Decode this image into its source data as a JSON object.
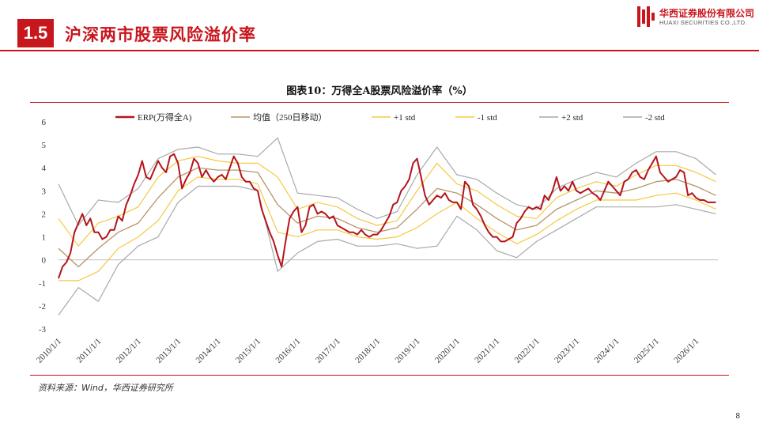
{
  "header": {
    "section_number": "1.5",
    "section_title": "沪深两市股票风险溢价率",
    "logo_cn": "华西证券股份有限公司",
    "logo_en": "HUAXI SECURITIES CO.,LTD.",
    "accent_color": "#c8161d"
  },
  "figure": {
    "title": "图表10：万得全A股票风险溢价率（%）",
    "source": "资料来源：Wind，华西证券研究所"
  },
  "page": {
    "number": "8"
  },
  "chart_data": {
    "type": "line",
    "title": "图表10：万得全A股票风险溢价率（%）",
    "xlabel": "",
    "ylabel": "",
    "ylim": [
      -3,
      6
    ],
    "yticks": [
      "-3",
      "-2",
      "-1",
      "0",
      "1",
      "2",
      "3",
      "4",
      "5",
      "6"
    ],
    "xlim": [
      2010.0,
      2026.55
    ],
    "xticks": [
      "2010/1/1",
      "2011/1/1",
      "2012/1/1",
      "2013/1/1",
      "2014/1/1",
      "2015/1/1",
      "2016/1/1",
      "2017/1/1",
      "2018/1/1",
      "2019/1/1",
      "2020/1/1",
      "2021/1/1",
      "2022/1/1",
      "2023/1/1",
      "2024/1/1",
      "2025/1/1",
      "2026/1/1"
    ],
    "legend_position": "top",
    "grid": false,
    "series": [
      {
        "name": "ERP(万得全A)",
        "color": "#b5141b",
        "width": 2.0,
        "x": [
          2010.0,
          2010.1,
          2010.2,
          2010.3,
          2010.4,
          2010.5,
          2010.6,
          2010.7,
          2010.8,
          2010.9,
          2011.0,
          2011.1,
          2011.2,
          2011.3,
          2011.4,
          2011.5,
          2011.6,
          2011.7,
          2011.8,
          2011.9,
          2012.0,
          2012.1,
          2012.2,
          2012.3,
          2012.4,
          2012.5,
          2012.6,
          2012.7,
          2012.8,
          2012.9,
          2013.0,
          2013.1,
          2013.2,
          2013.3,
          2013.4,
          2013.5,
          2013.6,
          2013.7,
          2013.8,
          2013.9,
          2014.0,
          2014.1,
          2014.2,
          2014.3,
          2014.4,
          2014.5,
          2014.6,
          2014.7,
          2014.8,
          2014.9,
          2015.0,
          2015.1,
          2015.2,
          2015.3,
          2015.4,
          2015.5,
          2015.6,
          2015.7,
          2015.8,
          2015.9,
          2016.0,
          2016.1,
          2016.2,
          2016.3,
          2016.4,
          2016.5,
          2016.6,
          2016.7,
          2016.8,
          2016.9,
          2017.0,
          2017.1,
          2017.2,
          2017.3,
          2017.4,
          2017.5,
          2017.6,
          2017.7,
          2017.8,
          2017.9,
          2018.0,
          2018.1,
          2018.2,
          2018.3,
          2018.4,
          2018.5,
          2018.6,
          2018.7,
          2018.8,
          2018.9,
          2019.0,
          2019.1,
          2019.2,
          2019.3,
          2019.4,
          2019.5,
          2019.6,
          2019.7,
          2019.8,
          2019.9,
          2020.0,
          2020.1,
          2020.2,
          2020.3,
          2020.4,
          2020.5,
          2020.6,
          2020.7,
          2020.8,
          2020.9,
          2021.0,
          2021.1,
          2021.2,
          2021.3,
          2021.4,
          2021.5,
          2021.6,
          2021.7,
          2021.8,
          2021.9,
          2022.0,
          2022.1,
          2022.2,
          2022.3,
          2022.4,
          2022.5,
          2022.6,
          2022.7,
          2022.8,
          2022.9,
          2023.0,
          2023.1,
          2023.2,
          2023.3,
          2023.4,
          2023.5,
          2023.6,
          2023.7,
          2023.8,
          2023.9,
          2024.0,
          2024.1,
          2024.2,
          2024.3,
          2024.4,
          2024.5,
          2024.6,
          2024.7,
          2024.8,
          2024.9,
          2025.0,
          2025.1,
          2025.2,
          2025.3,
          2025.4,
          2025.5,
          2025.6,
          2025.7,
          2025.8,
          2025.9,
          2026.0,
          2026.1,
          2026.2,
          2026.3,
          2026.4,
          2026.5
        ],
        "y": [
          -0.8,
          -0.3,
          -0.1,
          0.3,
          1.2,
          1.6,
          2.0,
          1.5,
          1.8,
          1.2,
          1.2,
          0.9,
          1.0,
          1.3,
          1.3,
          1.9,
          1.7,
          2.4,
          2.8,
          3.3,
          3.7,
          4.3,
          3.6,
          3.5,
          3.9,
          4.3,
          4.0,
          3.8,
          4.5,
          4.6,
          4.2,
          3.1,
          3.5,
          3.8,
          4.4,
          4.2,
          3.6,
          3.9,
          3.6,
          3.4,
          3.6,
          3.7,
          3.5,
          4.0,
          4.5,
          4.2,
          3.6,
          3.4,
          3.4,
          3.1,
          3.0,
          2.2,
          1.7,
          1.2,
          0.8,
          0.2,
          -0.3,
          0.8,
          1.8,
          2.1,
          2.3,
          1.2,
          1.5,
          2.3,
          2.4,
          2.0,
          2.1,
          2.0,
          1.8,
          1.9,
          1.5,
          1.4,
          1.3,
          1.2,
          1.2,
          1.1,
          1.3,
          1.1,
          1.0,
          1.1,
          1.1,
          1.3,
          1.6,
          1.9,
          2.4,
          2.5,
          3.0,
          3.2,
          3.5,
          4.2,
          4.4,
          3.6,
          2.8,
          2.4,
          2.6,
          2.8,
          2.7,
          2.9,
          2.6,
          2.5,
          2.5,
          2.2,
          3.4,
          3.2,
          2.4,
          2.2,
          1.9,
          1.5,
          1.2,
          1.0,
          1.0,
          0.8,
          0.8,
          0.9,
          1.0,
          1.6,
          1.8,
          2.1,
          2.3,
          2.2,
          2.3,
          2.2,
          2.8,
          2.6,
          3.0,
          3.6,
          3.0,
          3.2,
          3.0,
          3.4,
          3.0,
          2.9,
          3.0,
          3.1,
          2.9,
          2.8,
          2.6,
          3.0,
          3.4,
          3.2,
          3.0,
          2.8,
          3.4,
          3.5,
          3.8,
          3.9,
          3.6,
          3.5,
          3.9,
          4.2,
          4.5,
          3.8,
          3.6,
          3.4,
          3.5,
          3.6,
          3.9,
          3.8,
          2.8,
          2.9,
          2.7,
          2.6,
          2.6,
          2.5,
          2.5,
          2.5
        ]
      },
      {
        "name": "均值（250日移动）",
        "color": "#b8936a",
        "width": 1.3,
        "x": [
          2010.0,
          2010.5,
          2011.0,
          2011.5,
          2012.0,
          2012.5,
          2013.0,
          2013.5,
          2014.0,
          2014.5,
          2015.0,
          2015.5,
          2016.0,
          2016.5,
          2017.0,
          2017.5,
          2018.0,
          2018.5,
          2019.0,
          2019.5,
          2020.0,
          2020.5,
          2021.0,
          2021.5,
          2022.0,
          2022.5,
          2023.0,
          2023.5,
          2024.0,
          2024.5,
          2025.0,
          2025.5,
          2026.0,
          2026.5
        ],
        "y": [
          0.5,
          -0.3,
          0.5,
          1.2,
          1.6,
          2.7,
          3.6,
          4.0,
          3.9,
          3.9,
          3.8,
          2.4,
          1.6,
          1.9,
          1.8,
          1.4,
          1.2,
          1.4,
          2.2,
          3.1,
          2.9,
          2.4,
          1.8,
          1.3,
          1.5,
          2.2,
          2.6,
          3.0,
          2.9,
          3.1,
          3.4,
          3.5,
          3.2,
          2.8
        ]
      },
      {
        "name": "+1 std",
        "color": "#f5c942",
        "width": 1.2,
        "x": [
          2010.0,
          2010.5,
          2011.0,
          2011.5,
          2012.0,
          2012.5,
          2013.0,
          2013.5,
          2014.0,
          2014.5,
          2015.0,
          2015.5,
          2016.0,
          2016.5,
          2017.0,
          2017.5,
          2018.0,
          2018.5,
          2019.0,
          2019.5,
          2020.0,
          2020.5,
          2021.0,
          2021.5,
          2022.0,
          2022.5,
          2023.0,
          2023.5,
          2024.0,
          2024.5,
          2025.0,
          2025.5,
          2026.0,
          2026.5
        ],
        "y": [
          1.8,
          0.6,
          1.6,
          1.9,
          2.3,
          3.6,
          4.3,
          4.5,
          4.3,
          4.2,
          4.2,
          3.6,
          2.2,
          2.5,
          2.3,
          1.8,
          1.5,
          1.7,
          3.0,
          4.2,
          3.3,
          3.0,
          2.4,
          1.9,
          1.8,
          2.7,
          3.1,
          3.4,
          3.2,
          3.7,
          4.1,
          4.1,
          3.8,
          3.4
        ]
      },
      {
        "name": "-1 std",
        "color": "#f5c942",
        "width": 1.2,
        "x": [
          2010.0,
          2010.5,
          2011.0,
          2011.5,
          2012.0,
          2012.5,
          2013.0,
          2013.5,
          2014.0,
          2014.5,
          2015.0,
          2015.5,
          2016.0,
          2016.5,
          2017.0,
          2017.5,
          2018.0,
          2018.5,
          2019.0,
          2019.5,
          2020.0,
          2020.5,
          2021.0,
          2021.5,
          2022.0,
          2022.5,
          2023.0,
          2023.5,
          2024.0,
          2024.5,
          2025.0,
          2025.5,
          2026.0,
          2026.5
        ],
        "y": [
          -0.9,
          -0.9,
          -0.5,
          0.5,
          1.0,
          1.7,
          3.0,
          3.6,
          3.5,
          3.5,
          3.3,
          1.2,
          1.0,
          1.3,
          1.3,
          1.0,
          0.9,
          1.0,
          1.4,
          2.0,
          2.5,
          1.8,
          1.2,
          0.7,
          1.1,
          1.7,
          2.2,
          2.6,
          2.6,
          2.6,
          2.8,
          2.9,
          2.6,
          2.2
        ]
      },
      {
        "name": "+2 std",
        "color": "#a9a9a9",
        "width": 1.2,
        "x": [
          2010.0,
          2010.5,
          2011.0,
          2011.5,
          2012.0,
          2012.5,
          2013.0,
          2013.5,
          2014.0,
          2014.5,
          2015.0,
          2015.5,
          2016.0,
          2016.5,
          2017.0,
          2017.5,
          2018.0,
          2018.5,
          2019.0,
          2019.5,
          2020.0,
          2020.5,
          2021.0,
          2021.5,
          2022.0,
          2022.5,
          2023.0,
          2023.5,
          2024.0,
          2024.5,
          2025.0,
          2025.5,
          2026.0,
          2026.5
        ],
        "y": [
          3.3,
          1.5,
          2.6,
          2.5,
          3.1,
          4.4,
          4.8,
          4.9,
          4.6,
          4.6,
          4.5,
          5.3,
          2.9,
          2.8,
          2.7,
          2.2,
          1.8,
          2.1,
          3.7,
          4.9,
          3.7,
          3.5,
          2.9,
          2.4,
          2.2,
          3.1,
          3.5,
          3.8,
          3.6,
          4.2,
          4.7,
          4.7,
          4.4,
          3.7
        ]
      },
      {
        "name": "-2 std",
        "color": "#a9a9a9",
        "width": 1.2,
        "x": [
          2010.0,
          2010.5,
          2011.0,
          2011.5,
          2012.0,
          2012.5,
          2013.0,
          2013.5,
          2014.0,
          2014.5,
          2015.0,
          2015.5,
          2016.0,
          2016.5,
          2017.0,
          2017.5,
          2018.0,
          2018.5,
          2019.0,
          2019.5,
          2020.0,
          2020.5,
          2021.0,
          2021.5,
          2022.0,
          2022.5,
          2023.0,
          2023.5,
          2024.0,
          2024.5,
          2025.0,
          2025.5,
          2026.0,
          2026.5
        ],
        "y": [
          -2.4,
          -1.2,
          -1.8,
          -0.2,
          0.6,
          1.0,
          2.5,
          3.2,
          3.2,
          3.2,
          3.0,
          -0.5,
          0.3,
          0.8,
          0.9,
          0.6,
          0.6,
          0.7,
          0.5,
          0.6,
          1.9,
          1.3,
          0.4,
          0.1,
          0.8,
          1.3,
          1.8,
          2.3,
          2.3,
          2.3,
          2.3,
          2.4,
          2.2,
          2.0
        ]
      }
    ]
  }
}
